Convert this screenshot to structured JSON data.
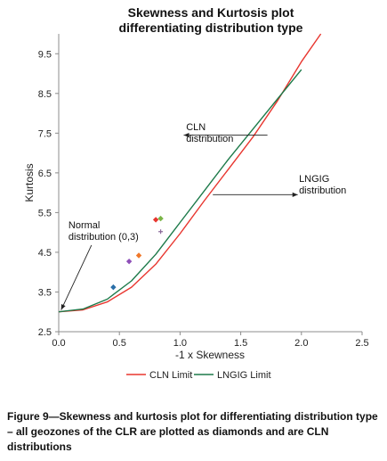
{
  "chart_data": {
    "type": "scatter",
    "title_lines": [
      "Skewness and Kurtosis plot",
      "differentiating distribution type"
    ],
    "xlabel": "-1 x Skewness",
    "ylabel": "Kurtosis",
    "xlim": [
      0,
      2.5
    ],
    "ylim": [
      2.5,
      10
    ],
    "x_ticks": [
      "0.0",
      "0.5",
      "1.0",
      "1.5",
      "2.0",
      "2.5"
    ],
    "y_ticks": [
      "2.5",
      "3.5",
      "4.5",
      "5.5",
      "6.5",
      "7.5",
      "8.5",
      "9.5"
    ],
    "grid": false,
    "legend_position": "bottom",
    "series": [
      {
        "name": "CLN Limit",
        "color": "#e8362f",
        "x": [
          0,
          0.2,
          0.4,
          0.6,
          0.8,
          1.0,
          1.2,
          1.4,
          1.6,
          1.8,
          2.0,
          2.16
        ],
        "y": [
          3.0,
          3.05,
          3.25,
          3.62,
          4.2,
          4.97,
          5.8,
          6.6,
          7.4,
          8.3,
          9.3,
          10.0
        ]
      },
      {
        "name": "LNGIG Limit",
        "color": "#1d7a4a",
        "x": [
          0,
          0.2,
          0.4,
          0.6,
          0.8,
          1.0,
          1.2,
          1.4,
          1.6,
          1.8,
          2.0
        ],
        "y": [
          3.0,
          3.07,
          3.32,
          3.78,
          4.45,
          5.25,
          6.05,
          6.85,
          7.6,
          8.35,
          9.1
        ]
      }
    ],
    "points": [
      {
        "x": 0.45,
        "y": 3.62,
        "color": "#2a6fa8",
        "marker": "diamond"
      },
      {
        "x": 0.58,
        "y": 4.27,
        "color": "#8e4fb8",
        "marker": "diamond"
      },
      {
        "x": 0.66,
        "y": 4.42,
        "color": "#f0782a",
        "marker": "diamond"
      },
      {
        "x": 0.8,
        "y": 5.32,
        "color": "#e8362f",
        "marker": "diamond"
      },
      {
        "x": 0.84,
        "y": 5.35,
        "color": "#7ab547",
        "marker": "diamond"
      },
      {
        "x": 0.84,
        "y": 5.02,
        "color": "#8a6a9a",
        "marker": "plus"
      }
    ],
    "annotations": [
      {
        "lines": [
          "CLN",
          "distribution"
        ],
        "text_at": [
          1.05,
          7.58
        ],
        "arrow_from": [
          1.72,
          7.45
        ],
        "arrow_to": [
          1.03,
          7.45
        ]
      },
      {
        "lines": [
          "LNGIG",
          "distribution"
        ],
        "text_at": [
          1.98,
          6.27
        ],
        "arrow_from": [
          1.27,
          5.95
        ],
        "arrow_to": [
          1.97,
          5.95
        ]
      },
      {
        "lines": [
          "Normal",
          "distribution (0,3)"
        ],
        "text_at": [
          0.08,
          5.1
        ],
        "arrow_from": [
          0.27,
          4.68
        ],
        "arrow_to": [
          0.02,
          3.05
        ]
      }
    ]
  },
  "caption": "Figure 9—Skewness and kurtosis plot for differentiating distribution type – all geozones of the CLR are plotted as diamonds and are CLN distributions"
}
